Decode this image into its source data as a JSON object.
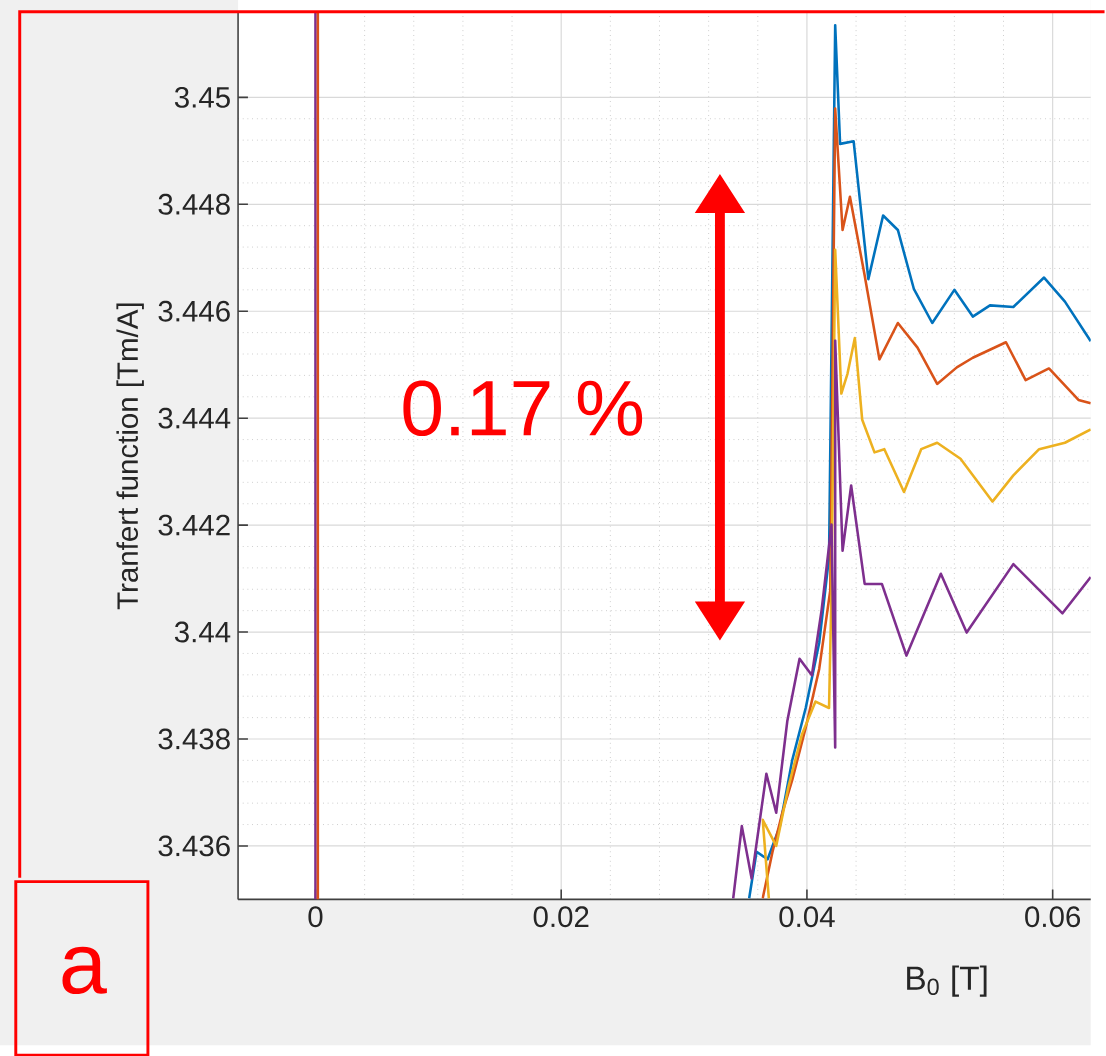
{
  "chart_data": {
    "type": "line",
    "xlabel": "B$_{0}$ [T]",
    "ylabel": "Tranfert function [Tm/A]",
    "annotations": [
      "0.17 %",
      "a"
    ],
    "xlim": [
      -0.0063,
      0.0631
    ],
    "ylim": [
      3.435,
      3.4516
    ],
    "xticks": [
      0,
      0.02,
      0.04,
      0.06
    ],
    "yticks": [
      3.436,
      3.438,
      3.44,
      3.442,
      3.444,
      3.446,
      3.448,
      3.45
    ],
    "grid": true,
    "ref_lines": [
      {
        "axis": "x",
        "value": 0,
        "color": "#7e2f8e"
      },
      {
        "axis": "x",
        "value": 0.0002,
        "color": "#d95319"
      }
    ],
    "series": [
      {
        "color": "#0072bd",
        "x": [
          0.0353,
          0.0359,
          0.0368,
          0.0378,
          0.0388,
          0.0399,
          0.041,
          0.0418,
          0.0423,
          0.0427,
          0.0438,
          0.045,
          0.0462,
          0.0474,
          0.0487,
          0.0502,
          0.052,
          0.0535,
          0.0549,
          0.0568,
          0.0593,
          0.061,
          0.0631
        ],
        "values": [
          3.43502,
          3.43589,
          3.43575,
          3.43637,
          3.4376,
          3.43858,
          3.4398,
          3.4414,
          3.45135,
          3.44913,
          3.44918,
          3.4466,
          3.44779,
          3.44752,
          3.44642,
          3.44578,
          3.4464,
          3.4459,
          3.44611,
          3.44608,
          3.44663,
          3.44618,
          3.44544
        ]
      },
      {
        "color": "#d95319",
        "x": [
          0.0364,
          0.0372,
          0.038,
          0.0388,
          0.0399,
          0.041,
          0.0419,
          0.0423,
          0.0429,
          0.0435,
          0.0447,
          0.0459,
          0.0474,
          0.049,
          0.0506,
          0.0522,
          0.0535,
          0.0562,
          0.0578,
          0.0597,
          0.0621,
          0.0631
        ],
        "values": [
          3.43502,
          3.43589,
          3.43662,
          3.43723,
          3.43821,
          3.43931,
          3.44078,
          3.44979,
          3.44752,
          3.44814,
          3.44667,
          3.4451,
          3.44578,
          3.44532,
          3.44464,
          3.44495,
          3.44513,
          3.44542,
          3.44471,
          3.44493,
          3.44434,
          3.44428
        ]
      },
      {
        "color": "#edb120",
        "x": [
          0.0369,
          0.0364,
          0.0375,
          0.0385,
          0.0396,
          0.0407,
          0.0418,
          0.042,
          0.0423,
          0.0428,
          0.0433,
          0.0439,
          0.0445,
          0.0455,
          0.0463,
          0.0479,
          0.0493,
          0.0506,
          0.0525,
          0.0551,
          0.0568,
          0.0589,
          0.061,
          0.0631
        ],
        "values": [
          3.43502,
          3.43649,
          3.436,
          3.43711,
          3.43809,
          3.4387,
          3.43858,
          3.44078,
          3.44715,
          3.44446,
          3.44483,
          3.4455,
          3.44397,
          3.44336,
          3.44342,
          3.44262,
          3.44342,
          3.44354,
          3.44324,
          3.44244,
          3.44293,
          3.44342,
          3.44354,
          3.44379
        ]
      },
      {
        "color": "#7e2f8e",
        "x": [
          0.034,
          0.0347,
          0.0355,
          0.0367,
          0.0375,
          0.0384,
          0.0394,
          0.0404,
          0.0412,
          0.042,
          0.0423,
          0.0423,
          0.0429,
          0.0436,
          0.0447,
          0.0461,
          0.0481,
          0.0509,
          0.053,
          0.0568,
          0.0608,
          0.0631
        ],
        "values": [
          3.43502,
          3.43637,
          3.43539,
          3.43735,
          3.43662,
          3.43833,
          3.4395,
          3.43919,
          3.44042,
          3.44201,
          3.43784,
          3.44545,
          3.44152,
          3.44274,
          3.4409,
          3.4409,
          3.43956,
          3.44109,
          3.43999,
          3.44127,
          3.44035,
          3.44103
        ]
      }
    ]
  }
}
